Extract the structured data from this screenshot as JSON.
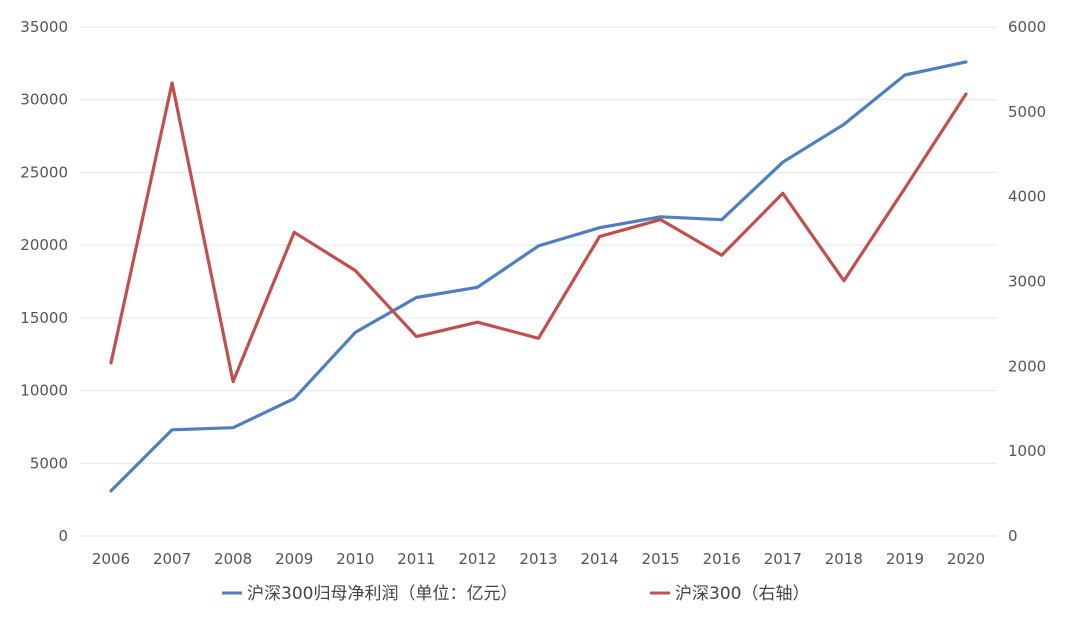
{
  "chart_data": {
    "type": "line",
    "x": [
      "2006",
      "2007",
      "2008",
      "2009",
      "2010",
      "2011",
      "2012",
      "2013",
      "2014",
      "2015",
      "2016",
      "2017",
      "2018",
      "2019",
      "2020"
    ],
    "series": [
      {
        "name": "沪深300归母净利润（单位：亿元）",
        "axis": "left",
        "color": "#4f7fbf",
        "values": [
          3100,
          7300,
          7450,
          9450,
          14000,
          16400,
          17100,
          19950,
          21200,
          21950,
          21750,
          25700,
          28300,
          31700,
          32600
        ]
      },
      {
        "name": "沪深300（右轴）",
        "axis": "right",
        "color": "#c0504d",
        "values": [
          2040,
          5340,
          1820,
          3580,
          3130,
          2350,
          2520,
          2330,
          3530,
          3730,
          3310,
          4040,
          3010,
          4100,
          5210
        ]
      }
    ],
    "y_left": {
      "ylim": [
        0,
        35000
      ],
      "ticks": [
        "0",
        "5000",
        "10000",
        "15000",
        "20000",
        "25000",
        "30000",
        "35000"
      ]
    },
    "y_right": {
      "ylim": [
        0,
        6000
      ],
      "ticks": [
        "0",
        "1000",
        "2000",
        "3000",
        "4000",
        "5000",
        "6000"
      ]
    },
    "grid": true,
    "legend_position": "bottom"
  }
}
